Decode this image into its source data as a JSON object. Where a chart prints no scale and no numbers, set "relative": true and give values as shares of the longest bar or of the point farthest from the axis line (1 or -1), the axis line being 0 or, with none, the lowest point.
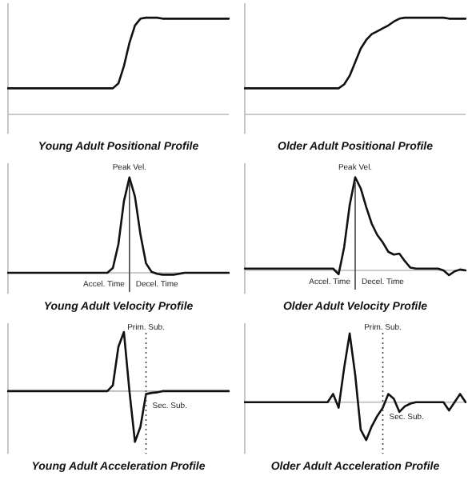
{
  "chart_data": [
    {
      "type": "line",
      "title": "Young Adult Positional Profile",
      "relative": true,
      "tick_labels": false,
      "marker": "none",
      "color": "#111111",
      "categories": [
        null,
        null,
        null,
        null,
        null,
        null,
        null,
        null,
        null,
        null,
        null,
        null,
        null,
        null,
        null,
        null,
        null,
        null,
        null,
        null,
        null,
        null,
        null,
        null,
        null,
        null,
        null,
        null,
        null,
        null,
        null,
        null,
        null,
        null,
        null,
        null,
        null,
        null,
        null,
        null,
        null
      ],
      "values": [
        0.27,
        0.27,
        0.27,
        0.27,
        0.27,
        0.27,
        0.27,
        0.27,
        0.27,
        0.27,
        0.27,
        0.27,
        0.27,
        0.27,
        0.27,
        0.27,
        0.27,
        0.27,
        0.27,
        0.27,
        0.32,
        0.5,
        0.74,
        0.92,
        0.99,
        1,
        1,
        1,
        0.99,
        0.99,
        0.99,
        0.99,
        0.99,
        0.99,
        0.99,
        0.99,
        0.99,
        0.99,
        0.99,
        0.99,
        0.99
      ]
    },
    {
      "type": "line",
      "title": "Older Adult Positional Profile",
      "relative": true,
      "tick_labels": false,
      "marker": "none",
      "color": "#111111",
      "categories": [
        null,
        null,
        null,
        null,
        null,
        null,
        null,
        null,
        null,
        null,
        null,
        null,
        null,
        null,
        null,
        null,
        null,
        null,
        null,
        null,
        null,
        null,
        null,
        null,
        null,
        null,
        null,
        null,
        null,
        null,
        null,
        null,
        null,
        null,
        null,
        null,
        null,
        null,
        null,
        null,
        null
      ],
      "values": [
        0.27,
        0.27,
        0.27,
        0.27,
        0.27,
        0.27,
        0.27,
        0.27,
        0.27,
        0.27,
        0.27,
        0.27,
        0.27,
        0.27,
        0.27,
        0.27,
        0.27,
        0.27,
        0.31,
        0.4,
        0.54,
        0.68,
        0.77,
        0.83,
        0.86,
        0.89,
        0.92,
        0.96,
        0.99,
        1,
        1,
        1,
        1,
        1,
        1,
        1,
        1,
        0.99,
        0.99,
        0.99,
        0.99
      ]
    },
    {
      "type": "line",
      "title": "Young Adult Velocity Profile",
      "relative": true,
      "tick_labels": false,
      "marker": "none",
      "color": "#111111",
      "categories": [
        null,
        null,
        null,
        null,
        null,
        null,
        null,
        null,
        null,
        null,
        null,
        null,
        null,
        null,
        null,
        null,
        null,
        null,
        null,
        null,
        null,
        null,
        null,
        null,
        null,
        null,
        null,
        null,
        null,
        null,
        null,
        null,
        null,
        null,
        null,
        null,
        null,
        null,
        null,
        null,
        null
      ],
      "values": [
        0,
        0,
        0,
        0,
        0,
        0,
        0,
        0,
        0,
        0,
        0,
        0,
        0,
        0,
        0,
        0,
        0,
        0,
        0,
        0.05,
        0.3,
        0.75,
        1,
        0.8,
        0.4,
        0.1,
        0.01,
        -0.01,
        -0.02,
        -0.02,
        -0.02,
        -0.01,
        0,
        0,
        0,
        0,
        0,
        0,
        0,
        0,
        0
      ],
      "annotations": [
        "Peak Vel.",
        "Accel. Time",
        "Decel. Time"
      ]
    },
    {
      "type": "line",
      "title": "Older Adult Velocity Profile",
      "relative": true,
      "tick_labels": false,
      "marker": "none",
      "color": "#111111",
      "categories": [
        null,
        null,
        null,
        null,
        null,
        null,
        null,
        null,
        null,
        null,
        null,
        null,
        null,
        null,
        null,
        null,
        null,
        null,
        null,
        null,
        null,
        null,
        null,
        null,
        null,
        null,
        null,
        null,
        null,
        null,
        null,
        null,
        null,
        null,
        null,
        null,
        null,
        null,
        null,
        null,
        null
      ],
      "values": [
        0.02,
        0.02,
        0.02,
        0.02,
        0.02,
        0.02,
        0.02,
        0.02,
        0.02,
        0.02,
        0.02,
        0.02,
        0.02,
        0.02,
        0.02,
        0.02,
        0.02,
        -0.04,
        0.25,
        0.7,
        1,
        0.88,
        0.68,
        0.5,
        0.38,
        0.3,
        0.2,
        0.17,
        0.18,
        0.1,
        0.03,
        0.02,
        0.02,
        0.02,
        0.02,
        0.02,
        0,
        -0.05,
        -0.01,
        0.01,
        0
      ],
      "annotations": [
        "Peak Vel.",
        "Accel. Time",
        "Decel. Time"
      ]
    },
    {
      "type": "line",
      "title": "Young Adult Acceleration Profile",
      "relative": true,
      "tick_labels": false,
      "marker": "none",
      "color": "#111111",
      "categories": [
        null,
        null,
        null,
        null,
        null,
        null,
        null,
        null,
        null,
        null,
        null,
        null,
        null,
        null,
        null,
        null,
        null,
        null,
        null,
        null,
        null,
        null,
        null,
        null,
        null,
        null,
        null,
        null,
        null,
        null,
        null,
        null,
        null,
        null,
        null,
        null,
        null,
        null,
        null,
        null,
        null
      ],
      "values": [
        0,
        0,
        0,
        0,
        0,
        0,
        0,
        0,
        0,
        0,
        0,
        0,
        0,
        0,
        0,
        0,
        0,
        0,
        0,
        0.1,
        0.75,
        1,
        0,
        -0.86,
        -0.6,
        -0.05,
        -0.03,
        -0.02,
        0,
        0,
        0,
        0,
        0,
        0,
        0,
        0,
        0,
        0,
        0,
        0,
        0
      ],
      "annotations": [
        "Prim. Sub.",
        "Sec. Sub."
      ]
    },
    {
      "type": "line",
      "title": "Older Adult Acceleration Profile",
      "relative": true,
      "tick_labels": false,
      "marker": "none",
      "color": "#111111",
      "categories": [
        null,
        null,
        null,
        null,
        null,
        null,
        null,
        null,
        null,
        null,
        null,
        null,
        null,
        null,
        null,
        null,
        null,
        null,
        null,
        null,
        null,
        null,
        null,
        null,
        null,
        null,
        null,
        null,
        null,
        null,
        null,
        null,
        null,
        null,
        null,
        null,
        null,
        null,
        null,
        null,
        null
      ],
      "values": [
        0,
        0,
        0,
        0,
        0,
        0,
        0,
        0,
        0,
        0,
        0,
        0,
        0,
        0,
        0,
        0,
        0.12,
        -0.08,
        0.5,
        1,
        0.4,
        -0.4,
        -0.55,
        -0.35,
        -0.2,
        -0.08,
        0.12,
        0.05,
        -0.14,
        -0.06,
        -0.02,
        0,
        0,
        0,
        0,
        0,
        0,
        -0.12,
        0,
        0.12,
        0
      ],
      "annotations": [
        "Prim. Sub.",
        "Sec. Sub."
      ]
    }
  ]
}
